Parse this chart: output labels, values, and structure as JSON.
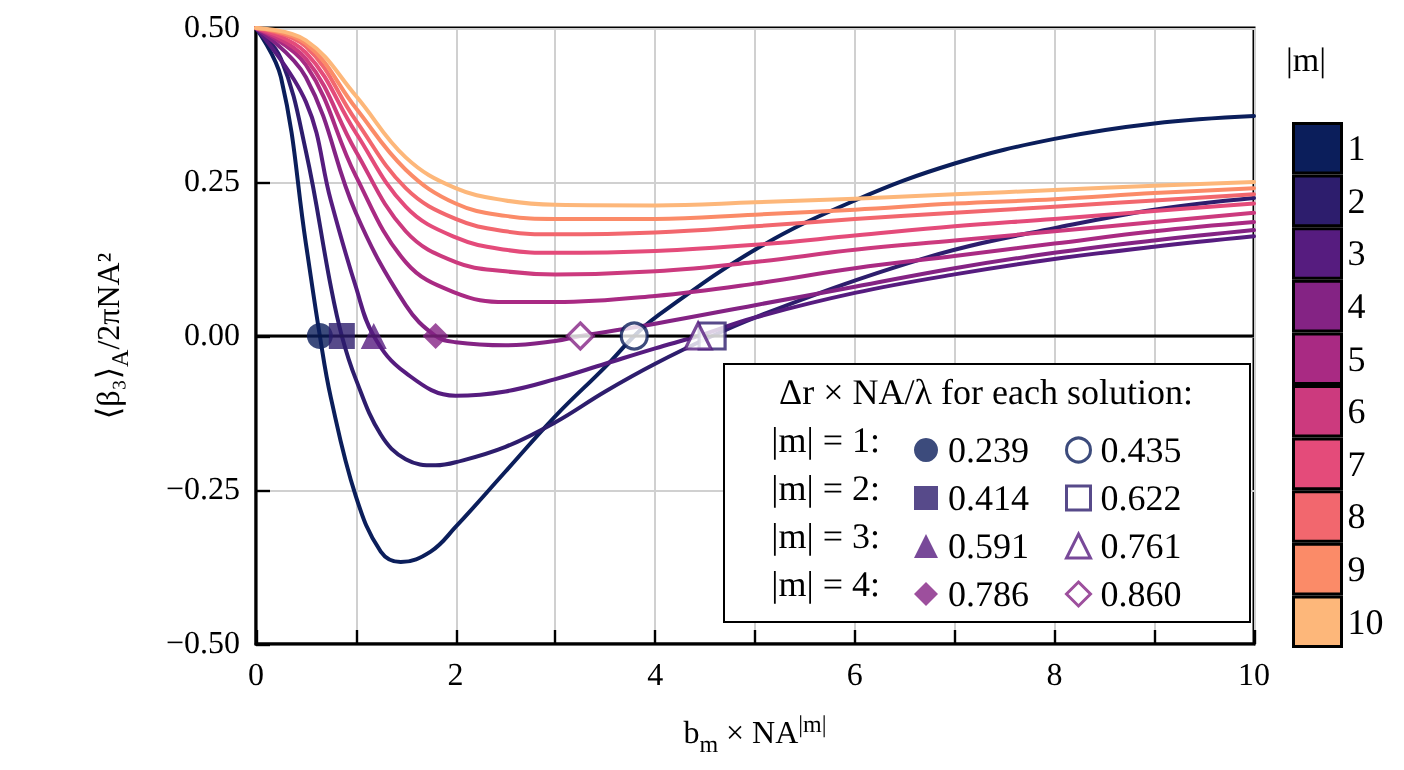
{
  "chart_data": {
    "type": "line",
    "xlabel": "b$_{m}$ × NA$^{|m|}$",
    "ylabel": "⟨β₃⟩$_{A}$/2πNA²",
    "legend_title": "|m|",
    "legend": "right",
    "grid": true,
    "line_style": "solid",
    "xlim": [
      0,
      10
    ],
    "ylim": [
      -0.5,
      0.5
    ],
    "xticks": [
      0,
      {
        "value": 1,
        "label": null
      },
      2,
      {
        "value": 3,
        "label": null
      },
      4,
      {
        "value": 5,
        "label": null
      },
      6,
      {
        "value": 7,
        "label": null
      },
      8,
      {
        "value": 9,
        "label": null
      },
      10
    ],
    "yticks": [
      {
        "value": -0.5,
        "label": "−0.50"
      },
      {
        "value": -0.25,
        "label": "−0.25"
      },
      {
        "value": 0,
        "label": "0.00"
      },
      {
        "value": 0.25,
        "label": "0.25"
      },
      {
        "value": 0.5,
        "label": "0.50"
      }
    ],
    "ref_lines": [
      {
        "axis": "y",
        "value": 0,
        "color": "#000000"
      }
    ],
    "annotations": [
      "Δr × NA/λ for each solution:",
      "|m| = 1:",
      "|m| = 2:",
      "|m| = 3:",
      "|m| = 4:"
    ],
    "series": [
      {
        "name": "1",
        "color": "#0b1e5b",
        "x": [
          0,
          0.25,
          0.5,
          0.64,
          0.75,
          1,
          1.25,
          1.45,
          1.75,
          2,
          2.5,
          3,
          3.5,
          3.79,
          4,
          5,
          6,
          7,
          8,
          9,
          10
        ],
        "values": [
          0.5,
          0.42,
          0.15,
          0,
          -0.1,
          -0.26,
          -0.35,
          -0.367,
          -0.35,
          -0.31,
          -0.22,
          -0.13,
          -0.05,
          0,
          0.03,
          0.14,
          0.22,
          0.28,
          0.32,
          0.345,
          0.357
        ]
      },
      {
        "name": "2",
        "color": "#2d1d6d",
        "x": [
          0,
          0.25,
          0.5,
          0.75,
          0.86,
          1,
          1.25,
          1.5,
          1.8,
          2,
          2.5,
          3,
          3.5,
          4,
          4.57,
          5,
          6,
          7,
          8,
          9,
          10
        ],
        "values": [
          0.5,
          0.45,
          0.3,
          0.08,
          0,
          -0.07,
          -0.16,
          -0.2,
          -0.21,
          -0.205,
          -0.18,
          -0.14,
          -0.09,
          -0.045,
          0,
          0.03,
          0.09,
          0.14,
          0.175,
          0.205,
          0.224
        ]
      },
      {
        "name": "3",
        "color": "#561c7f",
        "x": [
          0,
          0.5,
          0.75,
          1,
          1.18,
          1.5,
          2,
          2.5,
          3,
          3.5,
          4,
          4.43,
          5,
          6,
          7,
          8,
          9,
          10
        ],
        "values": [
          0.5,
          0.38,
          0.22,
          0.08,
          0,
          -0.06,
          -0.097,
          -0.09,
          -0.07,
          -0.045,
          -0.02,
          0,
          0.03,
          0.07,
          0.1,
          0.125,
          0.145,
          0.162
        ]
      },
      {
        "name": "4",
        "color": "#842384",
        "x": [
          0,
          0.5,
          1,
          1.5,
          1.8,
          2,
          2.5,
          3,
          3.25,
          4,
          5,
          6,
          7,
          8,
          9,
          10
        ],
        "values": [
          0.5,
          0.42,
          0.2,
          0.05,
          0,
          -0.01,
          -0.015,
          -0.008,
          0,
          0.02,
          0.05,
          0.08,
          0.11,
          0.135,
          0.155,
          0.172
        ]
      },
      {
        "name": "5",
        "color": "#a92a83",
        "x": [
          0,
          0.5,
          1,
          1.5,
          2,
          2.5,
          3,
          4,
          5,
          6,
          7,
          8,
          9,
          10
        ],
        "values": [
          0.5,
          0.44,
          0.26,
          0.12,
          0.07,
          0.055,
          0.055,
          0.065,
          0.085,
          0.11,
          0.13,
          0.15,
          0.17,
          0.185
        ]
      },
      {
        "name": "6",
        "color": "#cc3a7e",
        "x": [
          0,
          0.5,
          1,
          1.5,
          2,
          2.5,
          3,
          4,
          5,
          6,
          7,
          8,
          9,
          10
        ],
        "values": [
          0.5,
          0.45,
          0.3,
          0.17,
          0.12,
          0.105,
          0.1,
          0.105,
          0.12,
          0.14,
          0.155,
          0.17,
          0.185,
          0.2
        ]
      },
      {
        "name": "7",
        "color": "#e44b7a",
        "x": [
          0,
          0.5,
          1,
          1.5,
          2,
          2.5,
          3,
          4,
          5,
          6,
          7,
          8,
          9,
          10
        ],
        "values": [
          0.5,
          0.46,
          0.33,
          0.21,
          0.16,
          0.14,
          0.135,
          0.138,
          0.148,
          0.163,
          0.178,
          0.19,
          0.203,
          0.215
        ]
      },
      {
        "name": "8",
        "color": "#f2676e",
        "x": [
          0,
          0.5,
          1,
          1.5,
          2,
          2.5,
          3,
          4,
          5,
          6,
          7,
          8,
          9,
          10
        ],
        "values": [
          0.5,
          0.47,
          0.35,
          0.24,
          0.19,
          0.17,
          0.165,
          0.168,
          0.178,
          0.19,
          0.2,
          0.21,
          0.22,
          0.23
        ]
      },
      {
        "name": "9",
        "color": "#fb8b68",
        "x": [
          0,
          0.5,
          1,
          1.5,
          2,
          2.5,
          3,
          4,
          5,
          6,
          7,
          8,
          9,
          10
        ],
        "values": [
          0.5,
          0.475,
          0.37,
          0.27,
          0.215,
          0.195,
          0.19,
          0.19,
          0.197,
          0.205,
          0.215,
          0.222,
          0.232,
          0.24
        ]
      },
      {
        "name": "10",
        "color": "#fdb77a",
        "x": [
          0,
          0.5,
          1,
          1.5,
          2,
          2.5,
          3,
          4,
          5,
          6,
          7,
          8,
          9,
          10
        ],
        "values": [
          0.5,
          0.48,
          0.39,
          0.29,
          0.24,
          0.22,
          0.213,
          0.212,
          0.217,
          0.223,
          0.23,
          0.237,
          0.244,
          0.25
        ]
      },
      {
        "name": "0.239",
        "type": "scatter",
        "marker": "circle",
        "color": "#0b1e5b",
        "x": [
          0.64
        ],
        "values": [
          0
        ]
      },
      {
        "name": "0.435",
        "type": "scatter",
        "marker": "circle",
        "color": "#0b1e5b",
        "x": [
          3.79
        ],
        "values": [
          0
        ]
      },
      {
        "name": "0.414",
        "type": "scatter",
        "marker": "square",
        "color": "#2d1d6d",
        "x": [
          0.86
        ],
        "values": [
          0
        ]
      },
      {
        "name": "0.622",
        "type": "scatter",
        "marker": "square",
        "color": "#2d1d6d",
        "x": [
          4.57
        ],
        "values": [
          0
        ]
      },
      {
        "name": "0.591",
        "type": "scatter",
        "marker": "triangle",
        "color": "#561c7f",
        "x": [
          1.18
        ],
        "values": [
          0
        ]
      },
      {
        "name": "0.761",
        "type": "scatter",
        "marker": "triangle",
        "color": "#561c7f",
        "x": [
          4.43
        ],
        "values": [
          0
        ]
      },
      {
        "name": "0.786",
        "type": "scatter",
        "marker": "diamond",
        "color": "#842384",
        "x": [
          1.8
        ],
        "values": [
          0
        ]
      },
      {
        "name": "0.860",
        "type": "scatter",
        "marker": "diamond",
        "color": "#842384",
        "x": [
          3.25
        ],
        "values": [
          0
        ]
      }
    ]
  }
}
